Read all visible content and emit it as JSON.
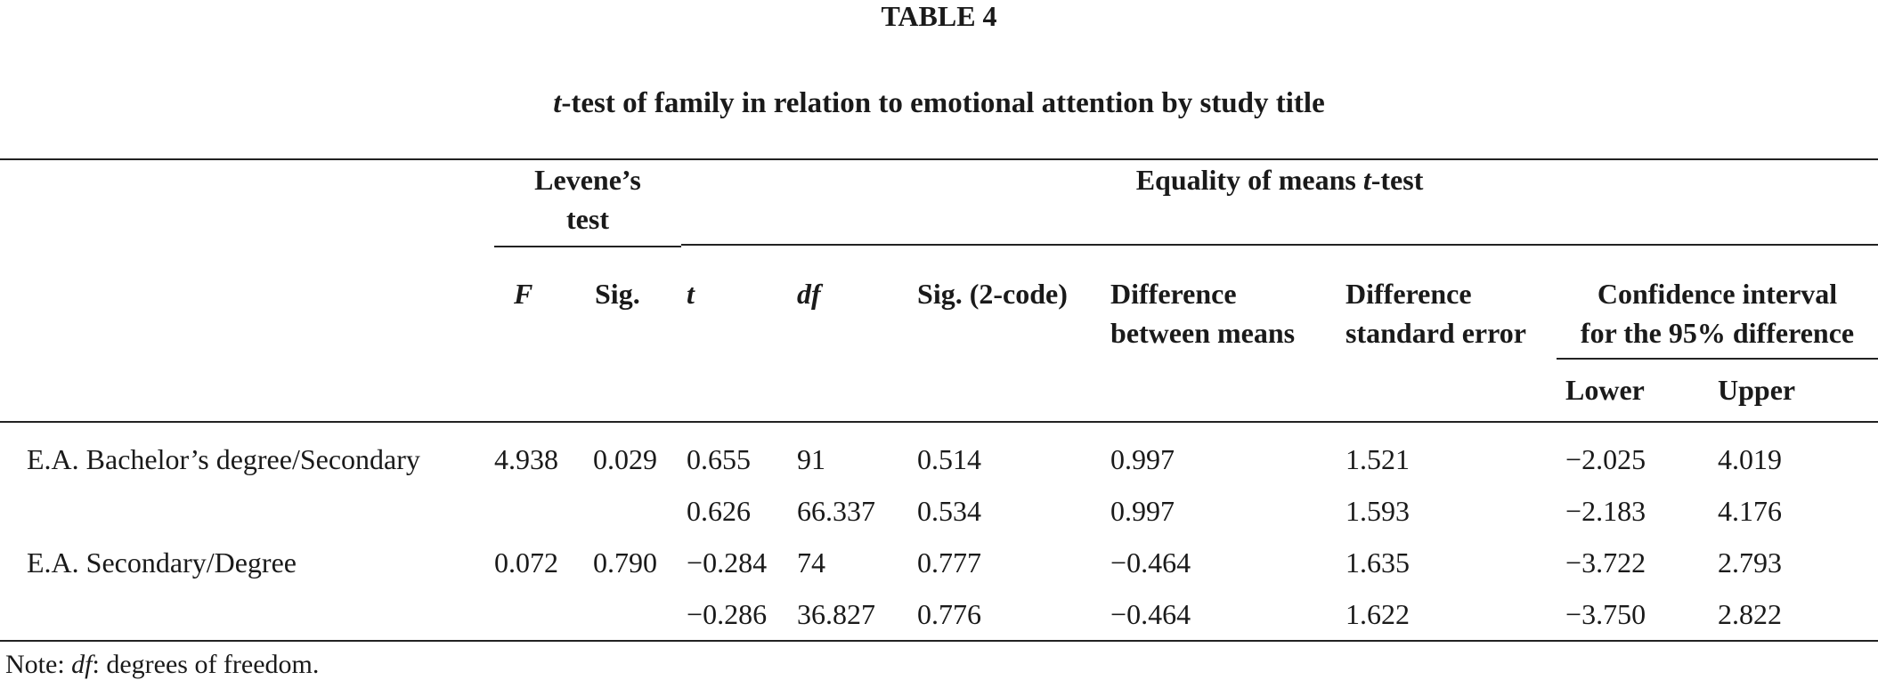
{
  "table_label": "TABLE 4",
  "caption": {
    "italic": "t",
    "rest": "-test of family in relation to emotional attention by study title"
  },
  "headers": {
    "levene_line1": "Levene’s",
    "levene_line2": "test",
    "equality_plain": "Equality of means ",
    "equality_italic": "t",
    "equality_suffix": "-test",
    "F": "F",
    "sig": "Sig.",
    "t": "t",
    "df": "df",
    "sig2": "Sig. (2-code)",
    "diff_means_line1": "Difference",
    "diff_means_line2": "between means",
    "diff_se_line1": "Difference",
    "diff_se_line2": "standard error",
    "ci_line1": "Confidence interval",
    "ci_line2": "for the 95% difference",
    "lower": "Lower",
    "upper": "Upper"
  },
  "rows": [
    {
      "label": "E.A. Bachelor’s degree/Secondary",
      "F": "4.938",
      "sig": "0.029",
      "t": "0.655",
      "df": "91",
      "sig2": "0.514",
      "diff_means": "0.997",
      "diff_se": "1.521",
      "lower": "−2.025",
      "upper": "4.019"
    },
    {
      "label": "",
      "F": "",
      "sig": "",
      "t": "0.626",
      "df": "66.337",
      "sig2": "0.534",
      "diff_means": "0.997",
      "diff_se": "1.593",
      "lower": "−2.183",
      "upper": "4.176"
    },
    {
      "label": "E.A. Secondary/Degree",
      "F": "0.072",
      "sig": "0.790",
      "t": "−0.284",
      "df": "74",
      "sig2": "0.777",
      "diff_means": "−0.464",
      "diff_se": "1.635",
      "lower": "−3.722",
      "upper": "2.793"
    },
    {
      "label": "",
      "F": "",
      "sig": "",
      "t": "−0.286",
      "df": "36.827",
      "sig2": "0.776",
      "diff_means": "−0.464",
      "diff_se": "1.622",
      "lower": "−3.750",
      "upper": "2.822"
    }
  ],
  "note": {
    "prefix": "Note: ",
    "italic": "df",
    "rest": ": degrees of freedom."
  }
}
